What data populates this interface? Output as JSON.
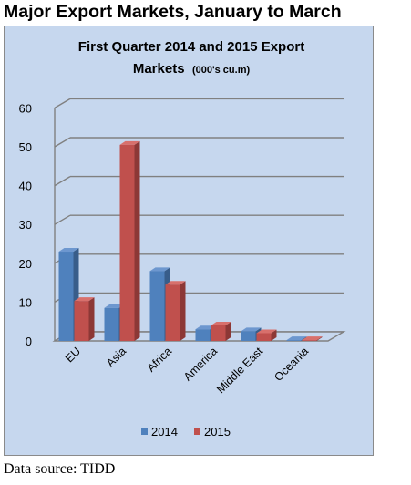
{
  "page": {
    "heading": "Major Export Markets, January to March",
    "source": "Data source: TIDD"
  },
  "chart_data": {
    "type": "bar",
    "title_line1": "First Quarter 2014 and 2015 Export",
    "title_line2": "Markets",
    "title_unit": "(000's cu.m)",
    "categories": [
      "EU",
      "Asia",
      "Africa",
      "America",
      "Middle East",
      "Oceania"
    ],
    "series": [
      {
        "name": "2014",
        "color": "#4f81bd",
        "values": [
          23,
          8.5,
          18,
          3,
          2.5,
          0.2
        ]
      },
      {
        "name": "2015",
        "color": "#c0504d",
        "values": [
          10.3,
          50.5,
          14.5,
          4,
          2,
          0.2
        ]
      }
    ],
    "yticks": [
      0,
      10,
      20,
      30,
      40,
      50,
      60
    ],
    "ylim": [
      0,
      60
    ],
    "grid": true,
    "legend_position": "bottom"
  }
}
